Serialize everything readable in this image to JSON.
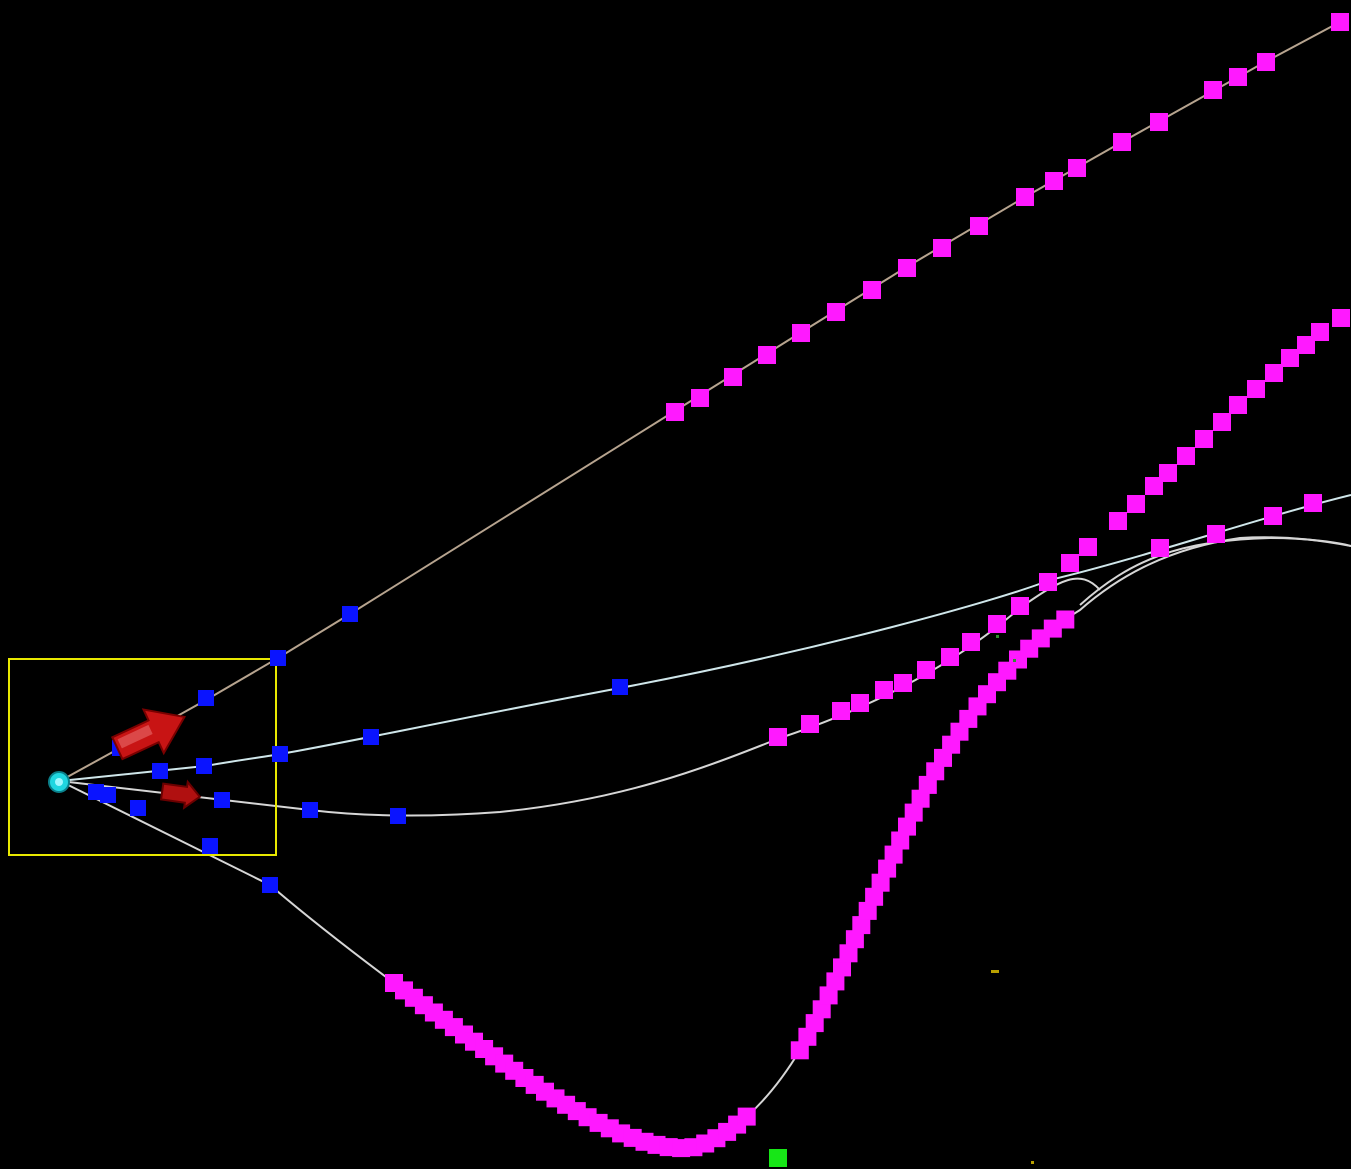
{
  "colors": {
    "background": "#000000",
    "track_upper": "#b7a48f",
    "track_light": "#cfe6ea",
    "track_white": "#d6d6d6",
    "selection_box": "#e8e800",
    "waypoint_far": "#ff19ff",
    "waypoint_near": "#0a14ff",
    "origin_marker": "#1fd6e0",
    "heading_arrow": "#c81414",
    "goal_marker": "#17e617"
  },
  "icons": {
    "origin": "origin-marker-icon",
    "heading": "heading-arrow-icon",
    "goal": "goal-marker-icon",
    "waypoint": "waypoint-marker-icon"
  }
}
